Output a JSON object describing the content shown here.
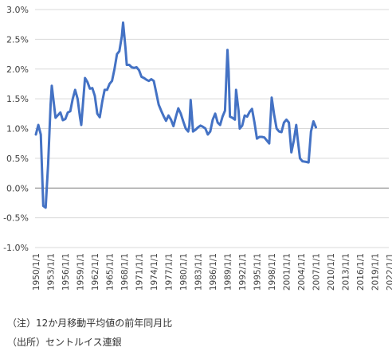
{
  "chart_data": {
    "type": "line",
    "title": "",
    "xlabel": "",
    "ylabel": "",
    "ylim": [
      -0.01,
      0.03
    ],
    "y_ticks": [
      "3.0%",
      "2.5%",
      "2.0%",
      "1.5%",
      "1.0%",
      "0.5%",
      "0.0%",
      "-0.5%",
      "-1.0%"
    ],
    "x_ticks": [
      "1950/1/1",
      "1953/1/1",
      "1956/1/1",
      "1959/1/1",
      "1962/1/1",
      "1965/1/1",
      "1968/1/1",
      "1971/1/1",
      "1974/1/1",
      "1977/1/1",
      "1980/1/1",
      "1983/1/1",
      "1986/1/1",
      "1989/1/1",
      "1992/1/1",
      "1995/1/1",
      "1998/1/1",
      "2001/1/1",
      "2004/1/1",
      "2007/1/1",
      "2010/1/1",
      "2013/1/1",
      "2016/1/1",
      "2019/1/1",
      "2022/1/1"
    ],
    "grid": "horizontal",
    "legend": "none",
    "color": "#4472C4",
    "series": [
      {
        "values": [
          {
            "x": "1950/1/1",
            "y": 0.009
          },
          {
            "x": "1950/7/1",
            "y": 0.0106
          },
          {
            "x": "1951/1/1",
            "y": 0.009
          },
          {
            "x": "1951/7/1",
            "y": -0.003
          },
          {
            "x": "1952/1/1",
            "y": -0.0033
          },
          {
            "x": "1952/7/1",
            "y": 0.004
          },
          {
            "x": "1953/1/1",
            "y": 0.014
          },
          {
            "x": "1953/4/1",
            "y": 0.0172
          },
          {
            "x": "1954/1/1",
            "y": 0.0118
          },
          {
            "x": "1955/1/1",
            "y": 0.0127
          },
          {
            "x": "1955/7/1",
            "y": 0.0114
          },
          {
            "x": "1956/1/1",
            "y": 0.0116
          },
          {
            "x": "1956/7/1",
            "y": 0.0127
          },
          {
            "x": "1957/1/1",
            "y": 0.0129
          },
          {
            "x": "1957/7/1",
            "y": 0.015
          },
          {
            "x": "1958/1/1",
            "y": 0.0165
          },
          {
            "x": "1958/7/1",
            "y": 0.015
          },
          {
            "x": "1959/1/1",
            "y": 0.0118
          },
          {
            "x": "1959/4/1",
            "y": 0.0106
          },
          {
            "x": "1960/1/1",
            "y": 0.0185
          },
          {
            "x": "1960/7/1",
            "y": 0.0178
          },
          {
            "x": "1961/1/1",
            "y": 0.0167
          },
          {
            "x": "1961/7/1",
            "y": 0.0168
          },
          {
            "x": "1962/1/1",
            "y": 0.0155
          },
          {
            "x": "1962/7/1",
            "y": 0.0125
          },
          {
            "x": "1963/1/1",
            "y": 0.0119
          },
          {
            "x": "1963/7/1",
            "y": 0.0145
          },
          {
            "x": "1964/1/1",
            "y": 0.0165
          },
          {
            "x": "1964/7/1",
            "y": 0.0165
          },
          {
            "x": "1965/1/1",
            "y": 0.0175
          },
          {
            "x": "1965/7/1",
            "y": 0.018
          },
          {
            "x": "1966/1/1",
            "y": 0.02
          },
          {
            "x": "1966/7/1",
            "y": 0.0225
          },
          {
            "x": "1967/1/1",
            "y": 0.023
          },
          {
            "x": "1967/7/1",
            "y": 0.0255
          },
          {
            "x": "1967/10/1",
            "y": 0.0278
          },
          {
            "x": "1968/4/1",
            "y": 0.0235
          },
          {
            "x": "1968/7/1",
            "y": 0.0207
          },
          {
            "x": "1969/1/1",
            "y": 0.0207
          },
          {
            "x": "1969/7/1",
            "y": 0.0203
          },
          {
            "x": "1970/1/1",
            "y": 0.0202
          },
          {
            "x": "1970/7/1",
            "y": 0.0203
          },
          {
            "x": "1971/1/1",
            "y": 0.0198
          },
          {
            "x": "1971/7/1",
            "y": 0.0187
          },
          {
            "x": "1972/1/1",
            "y": 0.0185
          },
          {
            "x": "1972/7/1",
            "y": 0.0182
          },
          {
            "x": "1973/1/1",
            "y": 0.018
          },
          {
            "x": "1973/7/1",
            "y": 0.0183
          },
          {
            "x": "1974/1/1",
            "y": 0.018
          },
          {
            "x": "1974/7/1",
            "y": 0.016
          },
          {
            "x": "1975/1/1",
            "y": 0.014
          },
          {
            "x": "1975/7/1",
            "y": 0.013
          },
          {
            "x": "1976/1/1",
            "y": 0.0121
          },
          {
            "x": "1976/7/1",
            "y": 0.0113
          },
          {
            "x": "1977/1/1",
            "y": 0.0122
          },
          {
            "x": "1977/7/1",
            "y": 0.0115
          },
          {
            "x": "1978/1/1",
            "y": 0.0104
          },
          {
            "x": "1978/7/1",
            "y": 0.012
          },
          {
            "x": "1979/1/1",
            "y": 0.0134
          },
          {
            "x": "1979/7/1",
            "y": 0.0125
          },
          {
            "x": "1980/1/1",
            "y": 0.0112
          },
          {
            "x": "1980/7/1",
            "y": 0.01
          },
          {
            "x": "1981/1/1",
            "y": 0.0095
          },
          {
            "x": "1981/4/1",
            "y": 0.0105
          },
          {
            "x": "1981/7/1",
            "y": 0.0148
          },
          {
            "x": "1982/1/1",
            "y": 0.0095
          },
          {
            "x": "1982/7/1",
            "y": 0.0098
          },
          {
            "x": "1983/1/1",
            "y": 0.0102
          },
          {
            "x": "1983/7/1",
            "y": 0.0105
          },
          {
            "x": "1984/1/1",
            "y": 0.0103
          },
          {
            "x": "1984/7/1",
            "y": 0.01
          },
          {
            "x": "1985/1/1",
            "y": 0.009
          },
          {
            "x": "1985/7/1",
            "y": 0.0095
          },
          {
            "x": "1986/1/1",
            "y": 0.0115
          },
          {
            "x": "1986/7/1",
            "y": 0.0125
          },
          {
            "x": "1987/1/1",
            "y": 0.011
          },
          {
            "x": "1987/7/1",
            "y": 0.0106
          },
          {
            "x": "1988/1/1",
            "y": 0.012
          },
          {
            "x": "1988/7/1",
            "y": 0.013
          },
          {
            "x": "1989/1/1",
            "y": 0.0232
          },
          {
            "x": "1989/4/1",
            "y": 0.0195
          },
          {
            "x": "1989/7/1",
            "y": 0.012
          },
          {
            "x": "1990/1/1",
            "y": 0.0118
          },
          {
            "x": "1990/7/1",
            "y": 0.0115
          },
          {
            "x": "1990/10/1",
            "y": 0.0165
          },
          {
            "x": "1991/4/1",
            "y": 0.013
          },
          {
            "x": "1991/7/1",
            "y": 0.01
          },
          {
            "x": "1992/1/1",
            "y": 0.0105
          },
          {
            "x": "1992/7/1",
            "y": 0.0122
          },
          {
            "x": "1993/1/1",
            "y": 0.012
          },
          {
            "x": "1993/7/1",
            "y": 0.0128
          },
          {
            "x": "1994/1/1",
            "y": 0.0133
          },
          {
            "x": "1994/7/1",
            "y": 0.011
          },
          {
            "x": "1995/1/1",
            "y": 0.0083
          },
          {
            "x": "1995/7/1",
            "y": 0.0086
          },
          {
            "x": "1996/1/1",
            "y": 0.0086
          },
          {
            "x": "1996/7/1",
            "y": 0.0085
          },
          {
            "x": "1997/1/1",
            "y": 0.008
          },
          {
            "x": "1997/7/1",
            "y": 0.0075
          },
          {
            "x": "1998/1/1",
            "y": 0.0152
          },
          {
            "x": "1998/7/1",
            "y": 0.0123
          },
          {
            "x": "1999/1/1",
            "y": 0.01
          },
          {
            "x": "1999/7/1",
            "y": 0.0095
          },
          {
            "x": "2000/1/1",
            "y": 0.0094
          },
          {
            "x": "2000/7/1",
            "y": 0.011
          },
          {
            "x": "2001/1/1",
            "y": 0.0115
          },
          {
            "x": "2001/7/1",
            "y": 0.011
          },
          {
            "x": "2002/1/1",
            "y": 0.006
          },
          {
            "x": "2002/7/1",
            "y": 0.008
          },
          {
            "x": "2003/1/1",
            "y": 0.0106
          },
          {
            "x": "2003/4/1",
            "y": 0.0085
          },
          {
            "x": "2003/10/1",
            "y": 0.005
          },
          {
            "x": "2004/4/1",
            "y": 0.0045
          },
          {
            "x": "2005/1/1",
            "y": 0.0044
          },
          {
            "x": "2005/7/1",
            "y": 0.0043
          },
          {
            "x": "2006/1/1",
            "y": 0.0095
          },
          {
            "x": "2006/7/1",
            "y": 0.0112
          },
          {
            "x": "2007/1/1",
            "y": 0.0102
          }
        ]
      }
    ]
  },
  "notes": {
    "note": "（注）12か月移動平均値の前年同月比",
    "source": "（出所）セントルイス連銀"
  }
}
